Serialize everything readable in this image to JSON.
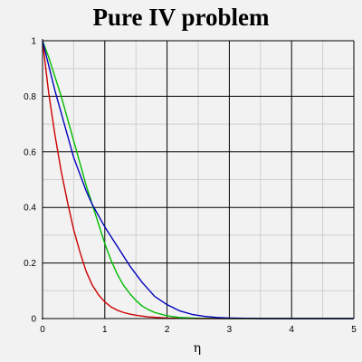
{
  "chart_data": {
    "type": "line",
    "title": "Pure IV problem",
    "xlabel": "η",
    "ylabel": "",
    "xlim": [
      0,
      5
    ],
    "ylim": [
      0,
      1
    ],
    "grid": true,
    "xticks": [
      "0",
      "1",
      "2",
      "3",
      "4",
      "5"
    ],
    "yticks": [
      "0",
      "0.2",
      "0.4",
      "0.6",
      "0.8",
      "1"
    ],
    "series": [
      {
        "color": "#cc0000",
        "x": [
          0,
          0.1,
          0.2,
          0.3,
          0.4,
          0.5,
          0.6,
          0.7,
          0.8,
          0.9,
          1.0,
          1.1,
          1.2,
          1.3,
          1.4,
          1.5,
          1.7,
          2.0,
          2.5,
          3.0,
          5.0
        ],
        "y": [
          1.0,
          0.81,
          0.66,
          0.53,
          0.42,
          0.32,
          0.24,
          0.17,
          0.12,
          0.085,
          0.06,
          0.042,
          0.03,
          0.022,
          0.016,
          0.012,
          0.006,
          0.002,
          0.0,
          0.0,
          0.0
        ]
      },
      {
        "color": "#00bb00",
        "x": [
          0,
          0.1,
          0.2,
          0.3,
          0.4,
          0.5,
          0.6,
          0.7,
          0.8,
          0.9,
          1.0,
          1.1,
          1.2,
          1.3,
          1.4,
          1.5,
          1.6,
          1.7,
          1.8,
          2.0,
          2.2,
          2.5,
          3.0,
          5.0
        ],
        "y": [
          1.0,
          0.94,
          0.87,
          0.8,
          0.72,
          0.64,
          0.56,
          0.48,
          0.41,
          0.34,
          0.27,
          0.21,
          0.16,
          0.12,
          0.09,
          0.065,
          0.045,
          0.032,
          0.022,
          0.01,
          0.004,
          0.001,
          0.0,
          0.0
        ]
      },
      {
        "color": "#0000bb",
        "x": [
          0,
          0.1,
          0.2,
          0.3,
          0.4,
          0.5,
          0.6,
          0.7,
          0.8,
          0.9,
          1.0,
          1.2,
          1.4,
          1.6,
          1.8,
          2.0,
          2.2,
          2.4,
          2.6,
          2.8,
          3.0,
          3.5,
          5.0
        ],
        "y": [
          1.0,
          0.91,
          0.82,
          0.74,
          0.66,
          0.58,
          0.52,
          0.46,
          0.41,
          0.37,
          0.33,
          0.26,
          0.19,
          0.13,
          0.08,
          0.05,
          0.028,
          0.015,
          0.008,
          0.004,
          0.002,
          0.0,
          0.0
        ]
      }
    ]
  }
}
